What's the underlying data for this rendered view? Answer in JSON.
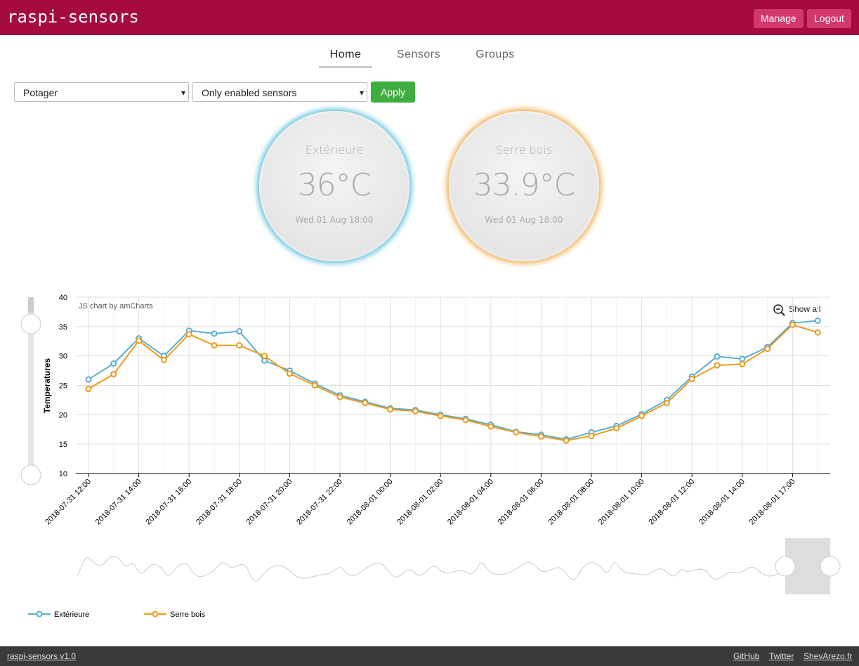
{
  "header": {
    "brand": "raspi-sensors",
    "buttons": [
      "Manage",
      "Logout"
    ]
  },
  "nav": {
    "tabs": [
      "Home",
      "Sensors",
      "Groups"
    ],
    "active": 0
  },
  "filters": {
    "group": "Potager",
    "sensors": "Only enabled sensors",
    "apply": "Apply"
  },
  "gauges": [
    {
      "name": "Extérieure",
      "value": "36°C",
      "date": "Wed 01 Aug 18:00",
      "color": "#5bc0de"
    },
    {
      "name": "Serre bois",
      "value": "33.9°C",
      "date": "Wed 01 Aug 18:00",
      "color": "#f0ad4e"
    }
  ],
  "chart_data": {
    "type": "line",
    "credit": "JS chart by amCharts",
    "zoom_label": "Show all",
    "y_label": "Temperatures",
    "categories": [
      "2018-07-31 12:00",
      null,
      "2018-07-31 14:00",
      null,
      "2018-07-31 16:00",
      null,
      "2018-07-31 18:00",
      null,
      "2018-07-31 20:00",
      null,
      "2018-07-31 22:00",
      null,
      "2018-08-01 00:00",
      null,
      "2018-08-01 02:00",
      null,
      "2018-08-01 04:00",
      null,
      "2018-08-01 06:00",
      null,
      "2018-08-01 08:00",
      null,
      "2018-08-01 10:00",
      null,
      "2018-08-01 12:00",
      null,
      "2018-08-01 14:00",
      null,
      "2018-08-01 17:00",
      null
    ],
    "series": [
      {
        "name": "Extérieure",
        "color": "#5aaed0",
        "values": [
          26,
          28.7,
          33,
          30,
          34.3,
          33.8,
          34.2,
          29.2,
          27.5,
          25.3,
          23.3,
          22.2,
          21.1,
          20.8,
          20,
          19.3,
          18.3,
          17.1,
          16.6,
          15.8,
          17,
          18.1,
          20.1,
          22.5,
          26.5,
          29.9,
          29.5,
          31.5,
          35.6,
          36
        ]
      },
      {
        "name": "Serre bois",
        "color": "#ee9a1c",
        "values": [
          24.4,
          26.9,
          32.6,
          29.3,
          33.7,
          31.8,
          31.8,
          30,
          27,
          25,
          23,
          22,
          20.9,
          20.6,
          19.8,
          19.1,
          18,
          17,
          16.3,
          15.6,
          16.4,
          17.7,
          19.8,
          22,
          26.1,
          28.4,
          28.6,
          31.2,
          35.3,
          34
        ]
      }
    ],
    "ylim": [
      10,
      40
    ],
    "yticks": [
      10,
      15,
      20,
      25,
      30,
      35,
      40
    ],
    "grid": true,
    "legend": "bottom-left"
  },
  "footer": {
    "version": "raspi-sensors v1.0",
    "links": [
      "GitHub",
      "Twitter",
      "ShevArezo.fr"
    ]
  }
}
